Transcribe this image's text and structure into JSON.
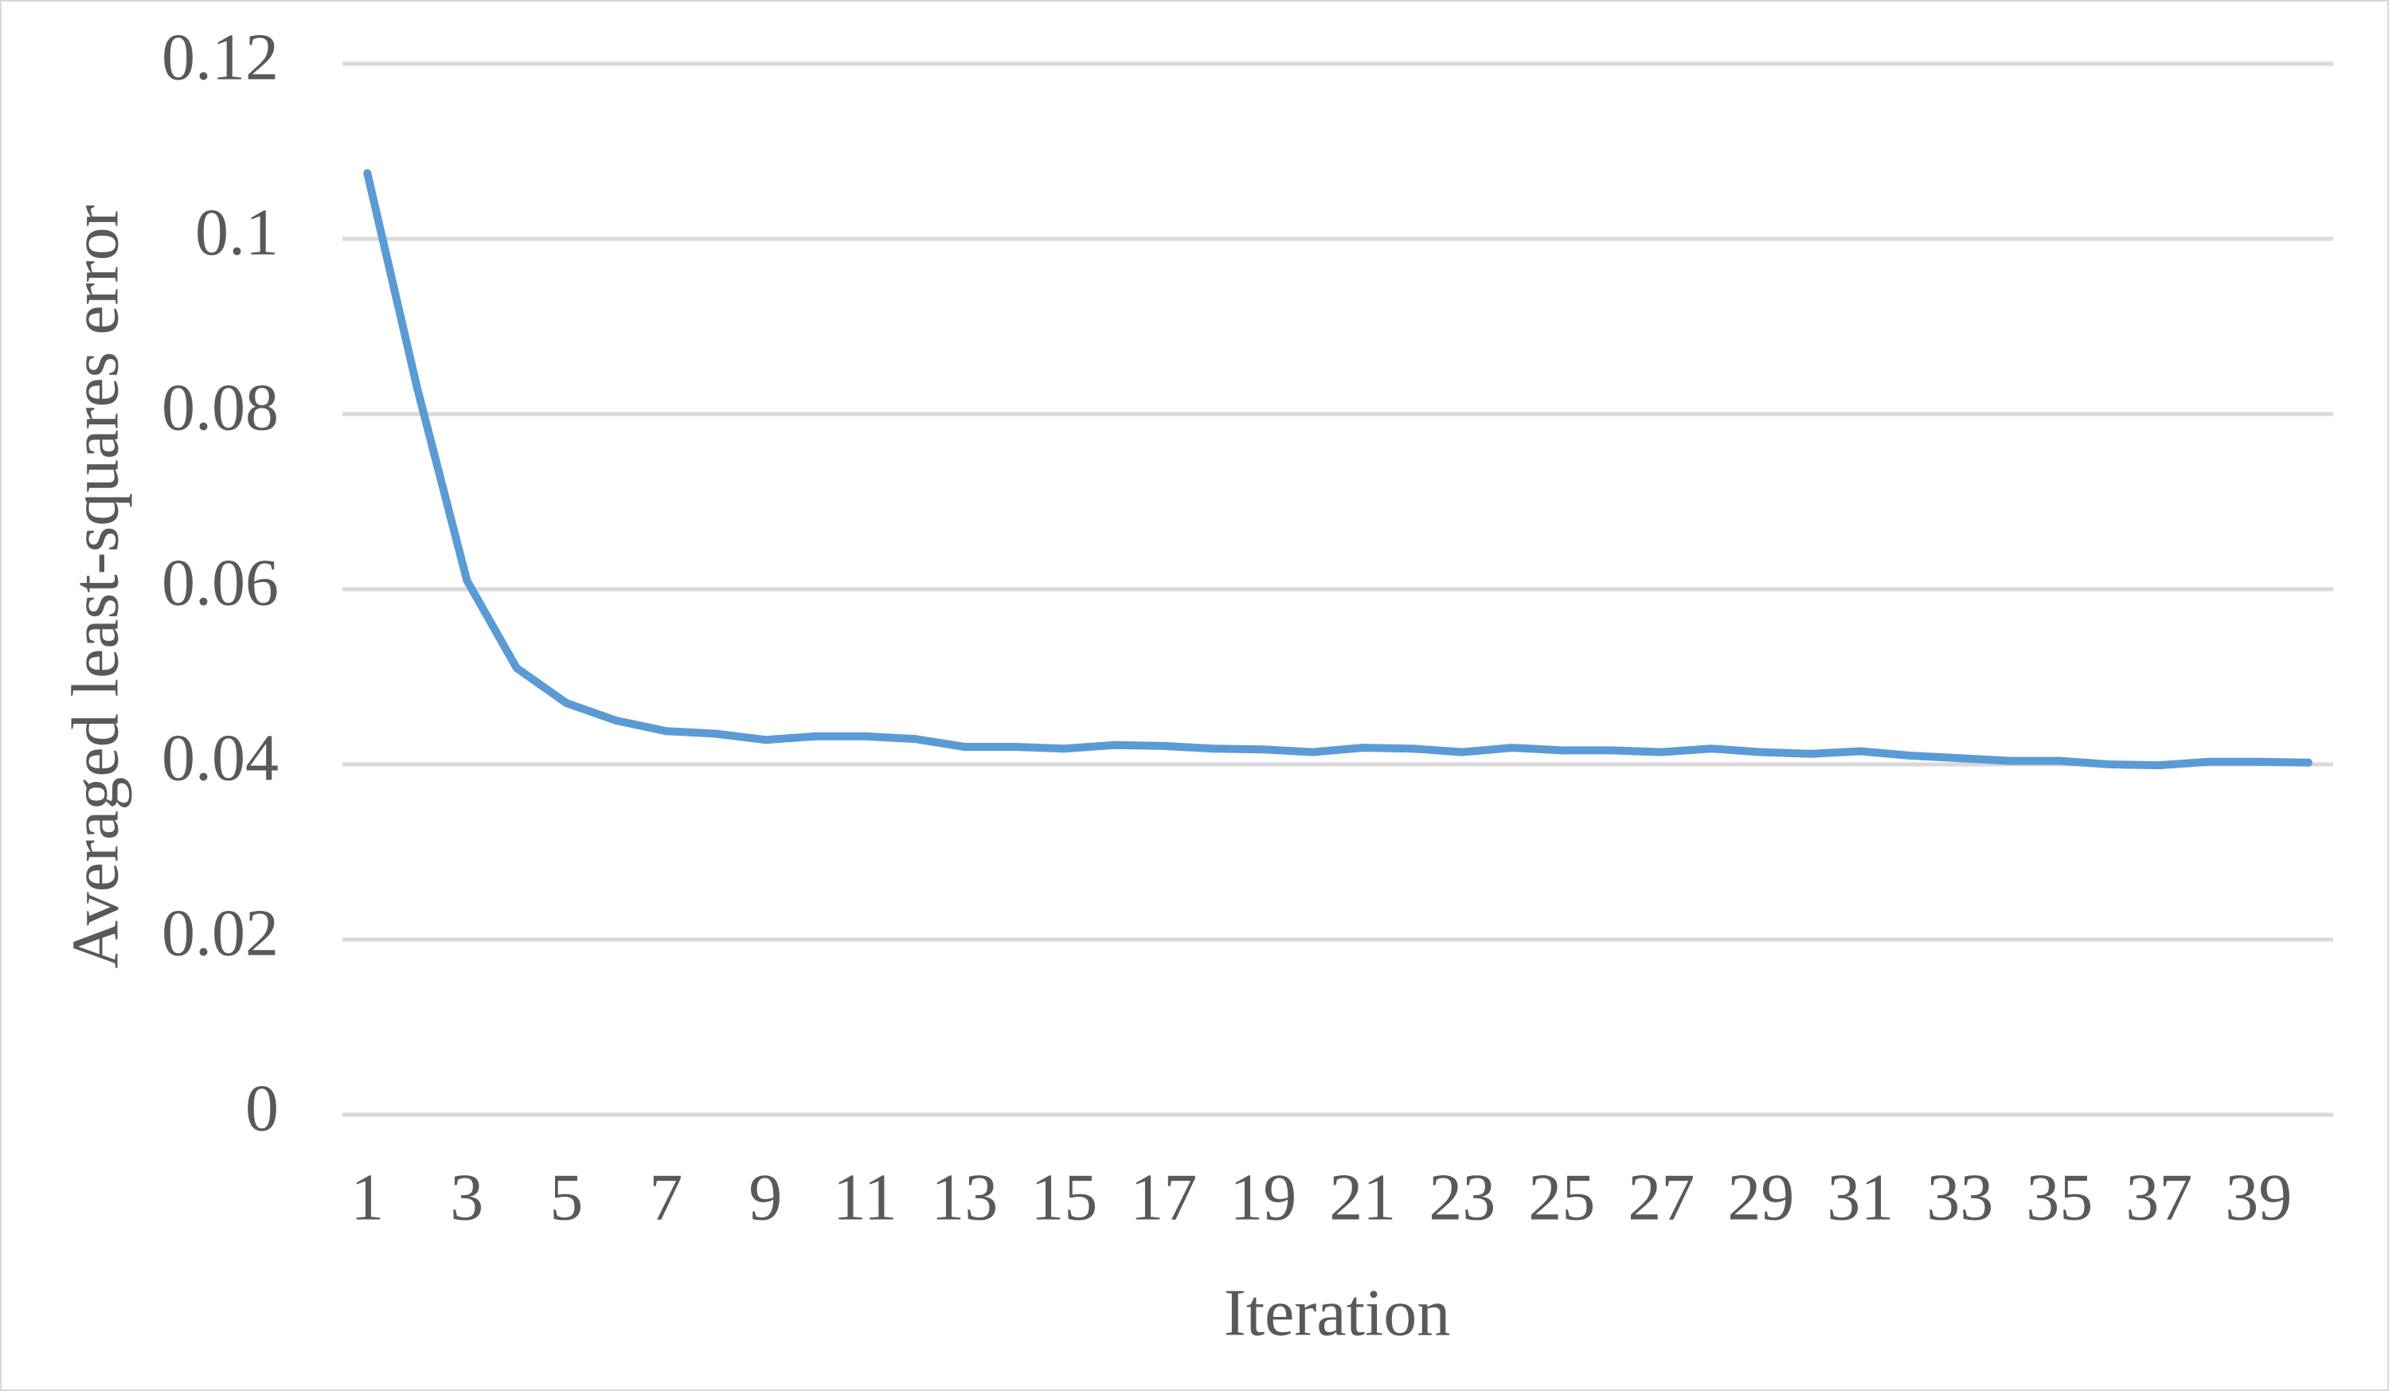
{
  "chart_data": {
    "type": "line",
    "title": "",
    "xlabel": "Iteration",
    "ylabel": "Averaged least-squares error",
    "x": [
      1,
      2,
      3,
      4,
      5,
      6,
      7,
      8,
      9,
      10,
      11,
      12,
      13,
      14,
      15,
      16,
      17,
      18,
      19,
      20,
      21,
      22,
      23,
      24,
      25,
      26,
      27,
      28,
      29,
      30,
      31,
      32,
      33,
      34,
      35,
      36,
      37,
      38,
      39,
      40
    ],
    "x_tick_labels": [
      "1",
      "3",
      "5",
      "7",
      "9",
      "11",
      "13",
      "15",
      "17",
      "19",
      "21",
      "23",
      "25",
      "27",
      "29",
      "31",
      "33",
      "35",
      "37",
      "39"
    ],
    "y_tick_labels": [
      "0",
      "0.02",
      "0.04",
      "0.06",
      "0.08",
      "0.1",
      "0.12"
    ],
    "y_ticks": [
      0,
      0.02,
      0.04,
      0.06,
      0.08,
      0.1,
      0.12
    ],
    "ylim": [
      0,
      0.12
    ],
    "xlim": [
      0.5,
      40.5
    ],
    "grid": "horizontal",
    "legend": "none",
    "series": [
      {
        "color": "#5b9bd5",
        "values": [
          0.1075,
          0.083,
          0.061,
          0.051,
          0.047,
          0.045,
          0.0438,
          0.0435,
          0.0428,
          0.0432,
          0.0432,
          0.0429,
          0.042,
          0.042,
          0.0418,
          0.0422,
          0.0421,
          0.0418,
          0.0417,
          0.0414,
          0.0419,
          0.0418,
          0.0414,
          0.0419,
          0.0416,
          0.0416,
          0.0414,
          0.0418,
          0.0414,
          0.0412,
          0.0415,
          0.041,
          0.0407,
          0.0404,
          0.0404,
          0.04,
          0.0399,
          0.0403,
          0.0403,
          0.0402
        ]
      }
    ],
    "colors": {
      "gridline": "#d9d9d9",
      "text": "#595959",
      "frame": "#d9d9d9",
      "series": "#5b9bd5"
    }
  }
}
